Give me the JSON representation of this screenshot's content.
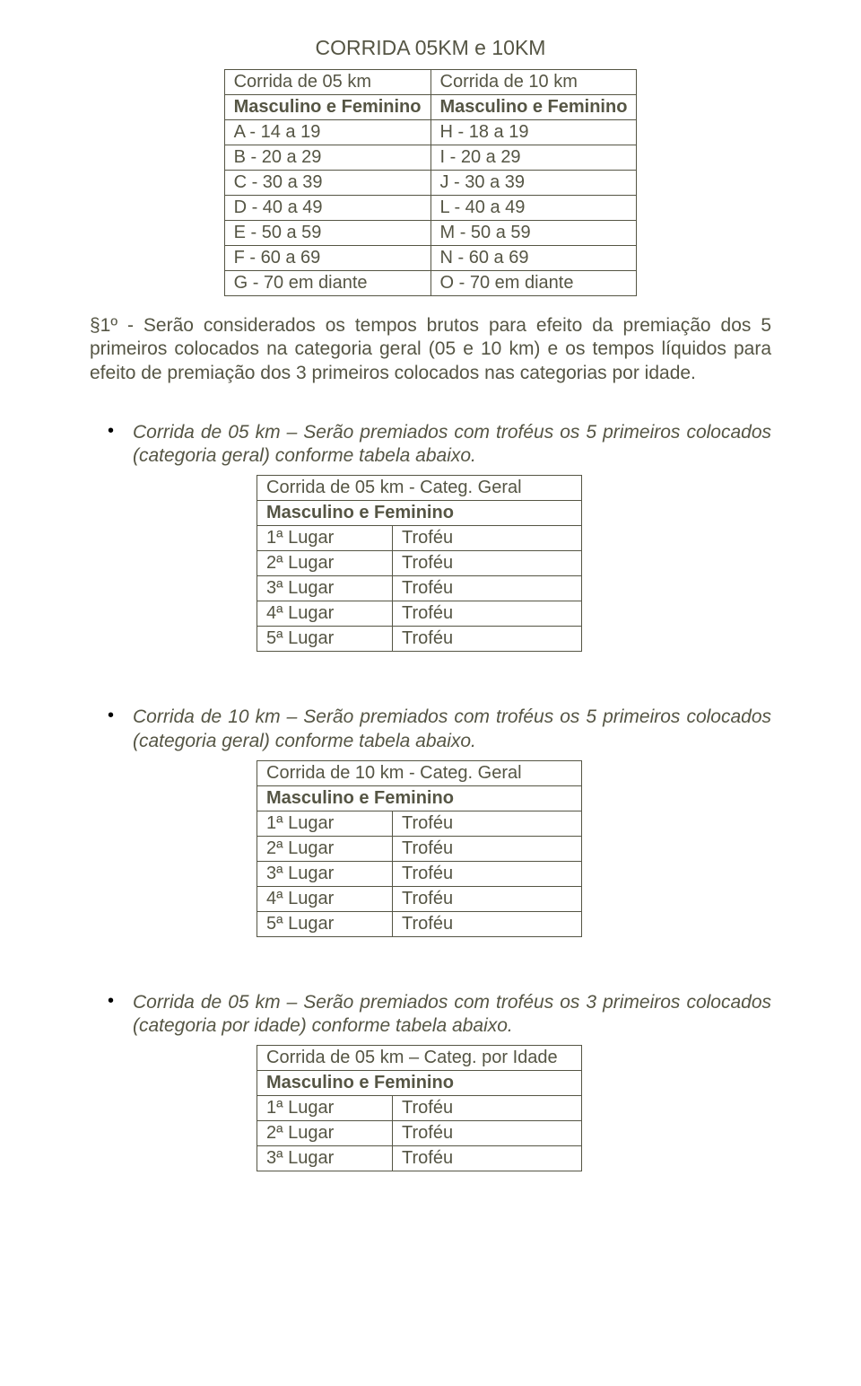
{
  "title": "CORRIDA 05KM e 10KM",
  "categories_table": {
    "columns": [
      {
        "header": "Corrida de 05 km",
        "sub": "Masculino e Feminino"
      },
      {
        "header": "Corrida de 10 km",
        "sub": "Masculino e Feminino"
      }
    ],
    "rows": [
      [
        "A - 14 a 19",
        "H - 18 a 19"
      ],
      [
        "B - 20 a 29",
        "I - 20 a 29"
      ],
      [
        "C - 30 a 39",
        "J - 30 a 39"
      ],
      [
        "D - 40 a 49",
        "L - 40 a 49"
      ],
      [
        "E - 50 a 59",
        "M - 50 a 59"
      ],
      [
        "F - 60 a 69",
        "N - 60 a 69"
      ],
      [
        "G - 70 em diante",
        "O - 70 em diante"
      ]
    ]
  },
  "paragraph1": "§1º - Serão considerados os tempos brutos para efeito da premiação dos 5 primeiros colocados na categoria geral (05 e 10 km) e os tempos líquidos para efeito de premiação dos 3 primeiros colocados nas categorias por idade.",
  "bullets": [
    {
      "text": "Corrida de 05 km – Serão premiados com troféus os 5 primeiros colocados (categoria geral) conforme tabela abaixo.",
      "table": {
        "title": "Corrida de 05 km - Categ. Geral",
        "sub": "Masculino e Feminino",
        "rows": [
          [
            "1ª Lugar",
            "Troféu"
          ],
          [
            "2ª Lugar",
            "Troféu"
          ],
          [
            "3ª Lugar",
            "Troféu"
          ],
          [
            "4ª Lugar",
            "Troféu"
          ],
          [
            "5ª Lugar",
            "Troféu"
          ]
        ]
      }
    },
    {
      "text": "Corrida de 10 km – Serão premiados com troféus os 5 primeiros colocados (categoria geral) conforme tabela abaixo.",
      "table": {
        "title": "Corrida de 10 km - Categ. Geral",
        "sub": "Masculino e Feminino",
        "rows": [
          [
            "1ª Lugar",
            "Troféu"
          ],
          [
            "2ª Lugar",
            "Troféu"
          ],
          [
            "3ª Lugar",
            "Troféu"
          ],
          [
            "4ª Lugar",
            "Troféu"
          ],
          [
            "5ª Lugar",
            "Troféu"
          ]
        ]
      }
    },
    {
      "text": "Corrida de 05 km – Serão premiados com troféus os 3 primeiros colocados (categoria por idade) conforme tabela abaixo.",
      "table": {
        "title": "Corrida de 05 km – Categ. por Idade",
        "sub": "Masculino e Feminino",
        "rows": [
          [
            "1ª Lugar",
            "Troféu"
          ],
          [
            "2ª Lugar",
            "Troféu"
          ],
          [
            "3ª Lugar",
            "Troféu"
          ]
        ]
      }
    }
  ],
  "colors": {
    "text": "#555544",
    "border": "#555544",
    "background": "#ffffff",
    "bullet": "#000000"
  }
}
